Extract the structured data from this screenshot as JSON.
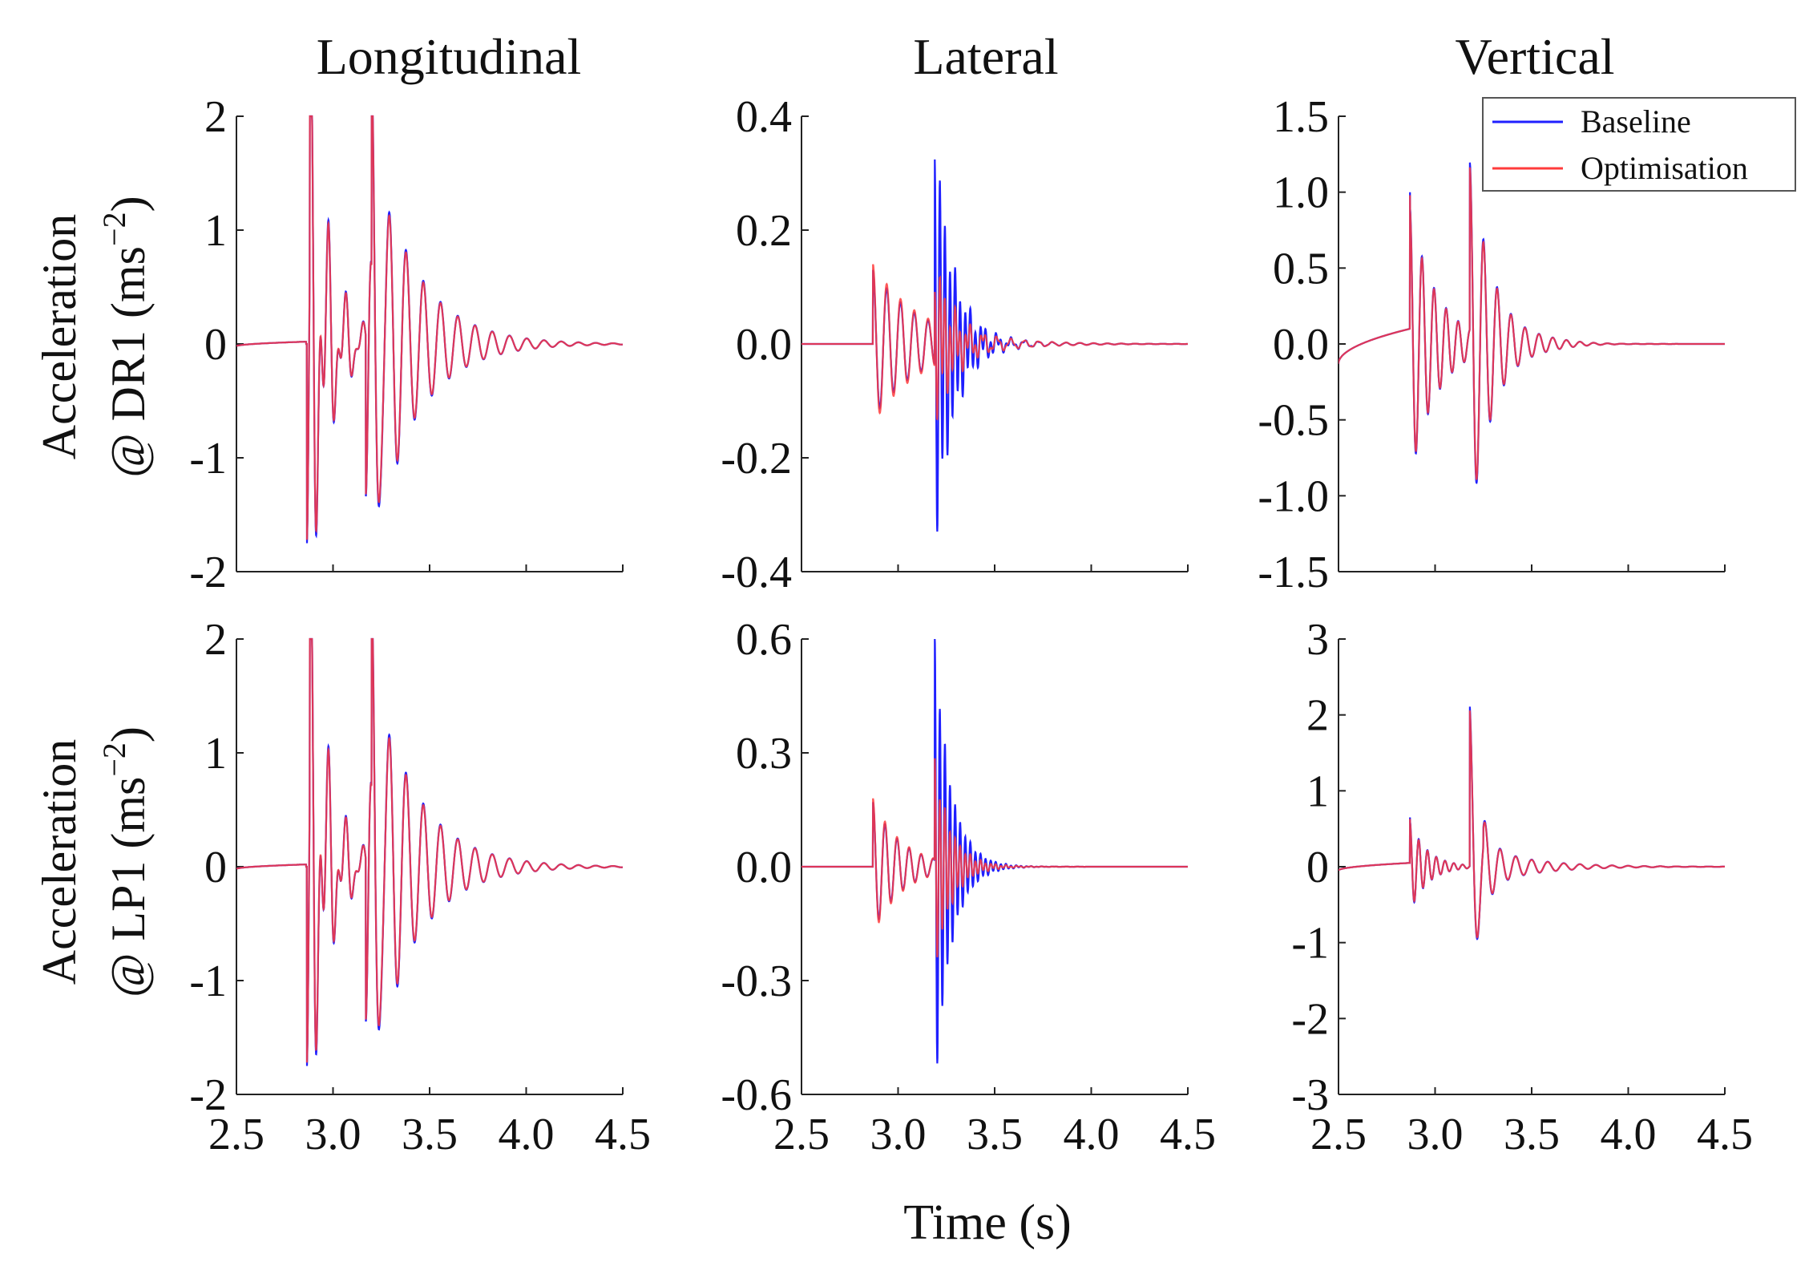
{
  "figure": {
    "x_label": "Time (s)",
    "column_titles": [
      "Longitudinal",
      "Lateral",
      "Vertical"
    ],
    "row_labels": [
      {
        "line1": "Acceleration",
        "line2_prefix": "@ DR1 (ms",
        "exponent": "−2",
        "suffix": ")"
      },
      {
        "line1": "Acceleration",
        "line2_prefix": "@ LP1 (ms",
        "exponent": "−2",
        "suffix": ")"
      }
    ],
    "legend": [
      {
        "label": "Baseline",
        "color": "#1f1fff"
      },
      {
        "label": "Optimisation",
        "color": "#ff3b3b"
      }
    ]
  },
  "chart_data": [
    {
      "type": "line",
      "row": 0,
      "col": 0,
      "title": "Longitudinal",
      "xlim": [
        2.5,
        4.5
      ],
      "ylim": [
        -2,
        2
      ],
      "xticks": [
        "2.5",
        "3.0",
        "3.5",
        "4.0",
        "4.5"
      ],
      "yticks": [
        "-2",
        "-1",
        "0",
        "1",
        "2"
      ],
      "series": [
        {
          "name": "Baseline",
          "color": "#1f1fff",
          "events": [
            {
              "t": 2.865,
              "amp": -1.75,
              "freq": 22,
              "tau": 0.09
            },
            {
              "t": 2.88,
              "amp": 1.45,
              "freq": 11,
              "tau": 0.12
            },
            {
              "t": 3.17,
              "amp": -1.4,
              "freq": 18,
              "tau": 0.05
            },
            {
              "t": 3.2,
              "amp": 1.9,
              "freq": 11.2,
              "tau": 0.22
            }
          ],
          "pre": {
            "start": 2.5,
            "end": 2.86,
            "v0": -0.02,
            "v1": 0.02
          }
        },
        {
          "name": "Optimisation",
          "color": "#ff3b3b",
          "events": [
            {
              "t": 2.865,
              "amp": -1.72,
              "freq": 22,
              "tau": 0.09
            },
            {
              "t": 2.88,
              "amp": 1.4,
              "freq": 11,
              "tau": 0.12
            },
            {
              "t": 3.17,
              "amp": -1.38,
              "freq": 18,
              "tau": 0.05
            },
            {
              "t": 3.2,
              "amp": 1.85,
              "freq": 11.2,
              "tau": 0.22
            }
          ],
          "pre": {
            "start": 2.5,
            "end": 2.86,
            "v0": -0.02,
            "v1": 0.02
          }
        }
      ]
    },
    {
      "type": "line",
      "row": 0,
      "col": 1,
      "title": "Lateral",
      "xlim": [
        2.5,
        4.5
      ],
      "ylim": [
        -0.4,
        0.4
      ],
      "xticks": [
        "2.5",
        "3.0",
        "3.5",
        "4.0",
        "4.5"
      ],
      "yticks": [
        "-0.4",
        "-0.2",
        "0.0",
        "0.2",
        "0.4"
      ],
      "series": [
        {
          "name": "Baseline",
          "color": "#1f1fff",
          "events": [
            {
              "t": 2.87,
              "amp": 0.13,
              "freq": 14,
              "tau": 0.25
            },
            {
              "t": 3.19,
              "amp": 0.36,
              "freq": 38,
              "tau": 0.09
            }
          ],
          "pre": null
        },
        {
          "name": "Optimisation",
          "color": "#ff3b3b",
          "events": [
            {
              "t": 2.87,
              "amp": 0.14,
              "freq": 14,
              "tau": 0.25
            },
            {
              "t": 3.19,
              "amp": 0.13,
              "freq": 38,
              "tau": 0.09
            }
          ],
          "pre": null
        }
      ]
    },
    {
      "type": "line",
      "row": 0,
      "col": 2,
      "title": "Vertical",
      "xlim": [
        2.5,
        4.5
      ],
      "ylim": [
        -1.5,
        1.5
      ],
      "xticks": [
        "2.5",
        "3.0",
        "3.5",
        "4.0",
        "4.5"
      ],
      "yticks": [
        "-1.5",
        "-1.0",
        "-0.5",
        "0.0",
        "0.5",
        "1.0",
        "1.5"
      ],
      "series": [
        {
          "name": "Baseline",
          "color": "#1f1fff",
          "events": [
            {
              "t": 2.87,
              "amp": 0.9,
              "freq": 16,
              "tau": 0.14
            },
            {
              "t": 3.18,
              "amp": 1.1,
              "freq": 14,
              "tau": 0.13
            }
          ],
          "pre": {
            "start": 2.5,
            "end": 2.87,
            "v0": -0.13,
            "v1": 0.1
          }
        },
        {
          "name": "Optimisation",
          "color": "#ff3b3b",
          "events": [
            {
              "t": 2.87,
              "amp": 0.88,
              "freq": 16,
              "tau": 0.14
            },
            {
              "t": 3.18,
              "amp": 1.07,
              "freq": 14,
              "tau": 0.13
            }
          ],
          "pre": {
            "start": 2.5,
            "end": 2.87,
            "v0": -0.13,
            "v1": 0.1
          }
        }
      ]
    },
    {
      "type": "line",
      "row": 1,
      "col": 0,
      "title": "",
      "xlim": [
        2.5,
        4.5
      ],
      "ylim": [
        -2,
        2
      ],
      "xticks": [
        "2.5",
        "3.0",
        "3.5",
        "4.0",
        "4.5"
      ],
      "yticks": [
        "-2",
        "-1",
        "0",
        "1",
        "2"
      ],
      "series": [
        {
          "name": "Baseline",
          "color": "#1f1fff",
          "events": [
            {
              "t": 2.865,
              "amp": -1.75,
              "freq": 22,
              "tau": 0.09
            },
            {
              "t": 2.88,
              "amp": 1.38,
              "freq": 11,
              "tau": 0.12
            },
            {
              "t": 3.17,
              "amp": -1.42,
              "freq": 18,
              "tau": 0.05
            },
            {
              "t": 3.2,
              "amp": 1.9,
              "freq": 11.2,
              "tau": 0.22
            }
          ],
          "pre": {
            "start": 2.5,
            "end": 2.86,
            "v0": -0.02,
            "v1": 0.02
          }
        },
        {
          "name": "Optimisation",
          "color": "#ff3b3b",
          "events": [
            {
              "t": 2.865,
              "amp": -1.72,
              "freq": 22,
              "tau": 0.09
            },
            {
              "t": 2.88,
              "amp": 1.33,
              "freq": 11,
              "tau": 0.12
            },
            {
              "t": 3.17,
              "amp": -1.4,
              "freq": 18,
              "tau": 0.05
            },
            {
              "t": 3.2,
              "amp": 1.85,
              "freq": 11.2,
              "tau": 0.22
            }
          ],
          "pre": {
            "start": 2.5,
            "end": 2.86,
            "v0": -0.02,
            "v1": 0.02
          }
        }
      ]
    },
    {
      "type": "line",
      "row": 1,
      "col": 1,
      "title": "",
      "xlim": [
        2.5,
        4.5
      ],
      "ylim": [
        -0.6,
        0.6
      ],
      "xticks": [
        "2.5",
        "3.0",
        "3.5",
        "4.0",
        "4.5"
      ],
      "yticks": [
        "-0.6",
        "-0.3",
        "0.0",
        "0.3",
        "0.6"
      ],
      "series": [
        {
          "name": "Baseline",
          "color": "#1f1fff",
          "events": [
            {
              "t": 2.87,
              "amp": 0.17,
              "freq": 16,
              "tau": 0.15
            },
            {
              "t": 3.19,
              "amp": 0.6,
              "freq": 38,
              "tau": 0.08
            }
          ],
          "pre": null
        },
        {
          "name": "Optimisation",
          "color": "#ff3b3b",
          "events": [
            {
              "t": 2.87,
              "amp": 0.18,
              "freq": 16,
              "tau": 0.15
            },
            {
              "t": 3.19,
              "amp": 0.27,
              "freq": 38,
              "tau": 0.08
            }
          ],
          "pre": null
        }
      ]
    },
    {
      "type": "line",
      "row": 1,
      "col": 2,
      "title": "",
      "xlim": [
        2.5,
        4.5
      ],
      "ylim": [
        -3,
        3
      ],
      "xticks": [
        "2.5",
        "3.0",
        "3.5",
        "4.0",
        "4.5"
      ],
      "yticks": [
        "-3",
        "-2",
        "-1",
        "0",
        "1",
        "2",
        "3"
      ],
      "series": [
        {
          "name": "Baseline",
          "color": "#1f1fff",
          "events": [
            {
              "t": 2.87,
              "amp": 0.6,
              "freq": 22,
              "tau": 0.09
            },
            {
              "t": 3.18,
              "amp": 2.1,
              "freq": 12,
              "tau": 0.05
            },
            {
              "t": 3.25,
              "amp": 0.25,
              "freq": 12,
              "tau": 0.25
            }
          ],
          "pre": {
            "start": 2.5,
            "end": 2.87,
            "v0": -0.05,
            "v1": 0.05
          }
        },
        {
          "name": "Optimisation",
          "color": "#ff3b3b",
          "events": [
            {
              "t": 2.87,
              "amp": 0.58,
              "freq": 22,
              "tau": 0.09
            },
            {
              "t": 3.18,
              "amp": 2.05,
              "freq": 12,
              "tau": 0.05
            },
            {
              "t": 3.25,
              "amp": 0.24,
              "freq": 12,
              "tau": 0.25
            }
          ],
          "pre": {
            "start": 2.5,
            "end": 2.87,
            "v0": -0.05,
            "v1": 0.05
          }
        }
      ]
    }
  ]
}
